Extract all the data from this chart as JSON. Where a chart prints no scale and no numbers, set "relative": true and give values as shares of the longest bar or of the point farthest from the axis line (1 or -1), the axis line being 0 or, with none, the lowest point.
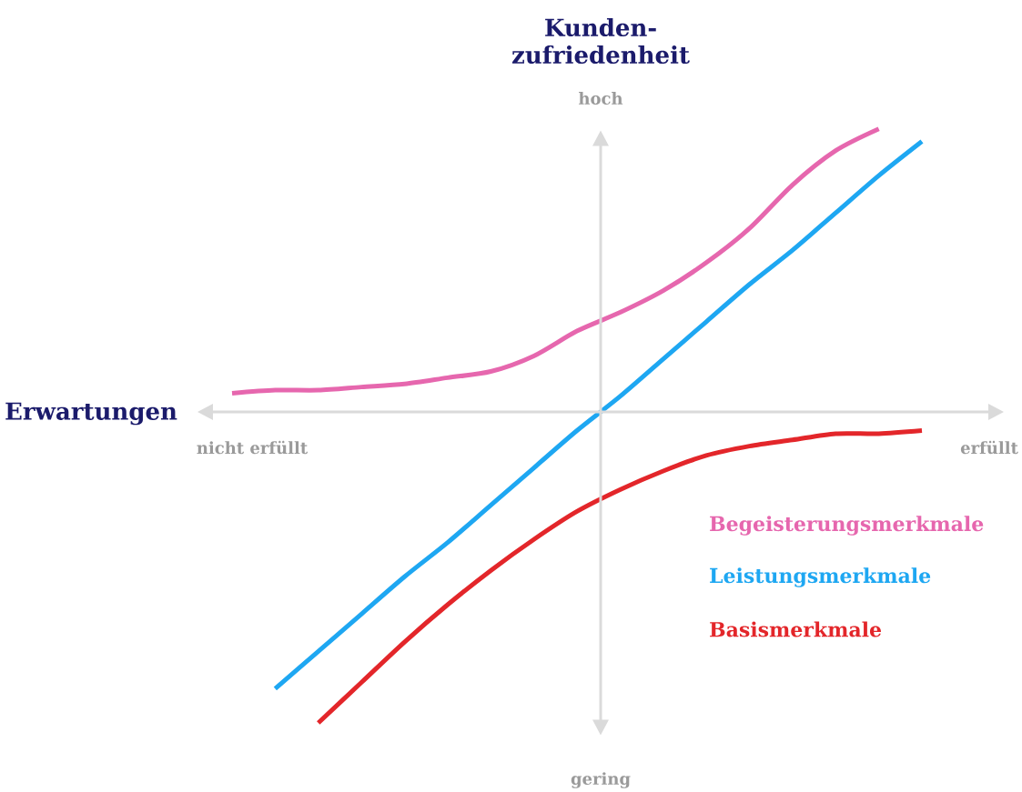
{
  "chart_data": {
    "type": "line",
    "relative": true,
    "xlabel": "Erwartungen",
    "ylabel": "Kunden-zufriedenheit",
    "annotations": [
      "hoch",
      "gering",
      "nicht erfüllt",
      "erfüllt"
    ],
    "categories": [
      null,
      null,
      null,
      null,
      null,
      null,
      null,
      null,
      null,
      null,
      null,
      null,
      null,
      null,
      null,
      null,
      null
    ],
    "legend": "bottom right",
    "marker": "none",
    "series": [
      {
        "name": "Begeisterungsmerkmale",
        "color": "#e667ae",
        "values": [
          0.06,
          0.07,
          0.07,
          0.08,
          0.09,
          0.11,
          0.13,
          0.18,
          0.26,
          0.32,
          0.39,
          0.48,
          0.59,
          0.73,
          0.84,
          0.91,
          null
        ]
      },
      {
        "name": "Leistungsmerkmale",
        "color": "#1ea7f2",
        "values": [
          null,
          -0.89,
          -0.77,
          -0.65,
          -0.53,
          -0.42,
          -0.3,
          -0.18,
          -0.06,
          0.05,
          0.17,
          0.29,
          0.41,
          0.52,
          0.64,
          0.76,
          0.87
        ]
      },
      {
        "name": "Basismerkmale",
        "color": "#e3262a",
        "values": [
          null,
          null,
          -1.0,
          -0.87,
          -0.74,
          -0.62,
          -0.51,
          -0.41,
          -0.32,
          -0.25,
          -0.19,
          -0.14,
          -0.11,
          -0.09,
          -0.07,
          -0.07,
          -0.06
        ]
      }
    ]
  }
}
